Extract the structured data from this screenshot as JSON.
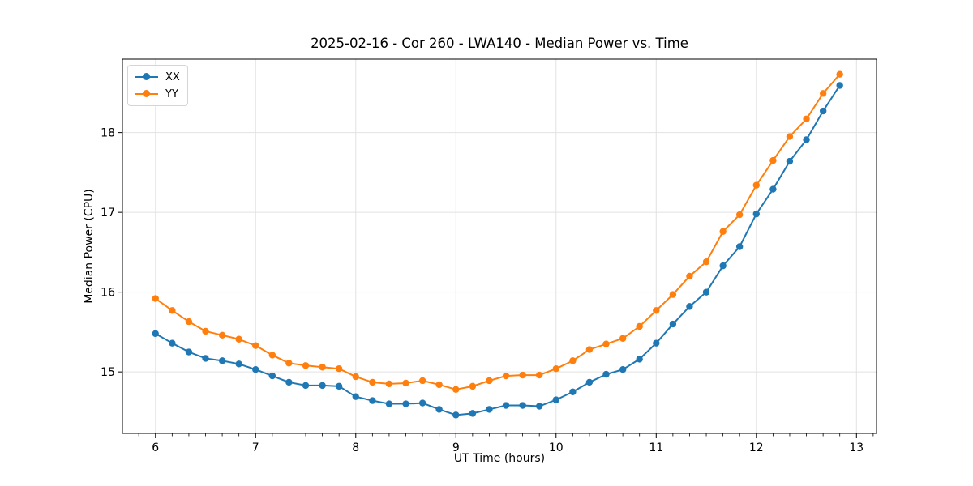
{
  "chart_data": {
    "type": "line",
    "title": "2025-02-16 - Cor 260 - LWA140 - Median Power vs. Time",
    "xlabel": "UT Time (hours)",
    "ylabel": "Median Power (CPU)",
    "xlim": [
      5.67,
      13.2
    ],
    "ylim": [
      14.23,
      18.92
    ],
    "xticks": [
      6,
      7,
      8,
      9,
      10,
      11,
      12,
      13
    ],
    "yticks": [
      15,
      16,
      17,
      18
    ],
    "x_minor_step": 0.1667,
    "grid": true,
    "grid_color": "#e2e2e2",
    "legend_position": "upper-left",
    "x": [
      6.0,
      6.167,
      6.333,
      6.5,
      6.667,
      6.833,
      7.0,
      7.167,
      7.333,
      7.5,
      7.667,
      7.833,
      8.0,
      8.167,
      8.333,
      8.5,
      8.667,
      8.833,
      9.0,
      9.167,
      9.333,
      9.5,
      9.667,
      9.833,
      10.0,
      10.167,
      10.333,
      10.5,
      10.667,
      10.833,
      11.0,
      11.167,
      11.333,
      11.5,
      11.667,
      11.833,
      12.0,
      12.167,
      12.333,
      12.5,
      12.667,
      12.833
    ],
    "series": [
      {
        "name": "XX",
        "color": "#1f77b4",
        "marker": "circle",
        "values": [
          15.48,
          15.36,
          15.25,
          15.17,
          15.14,
          15.1,
          15.03,
          14.95,
          14.87,
          14.83,
          14.83,
          14.82,
          14.69,
          14.64,
          14.6,
          14.6,
          14.61,
          14.53,
          14.46,
          14.48,
          14.53,
          14.58,
          14.58,
          14.57,
          14.65,
          14.75,
          14.87,
          14.97,
          15.03,
          15.16,
          15.36,
          15.6,
          15.82,
          16.0,
          16.33,
          16.57,
          16.98,
          17.29,
          17.64,
          17.91,
          18.27,
          18.59
        ]
      },
      {
        "name": "YY",
        "color": "#ff7f0e",
        "marker": "circle",
        "values": [
          15.92,
          15.77,
          15.63,
          15.51,
          15.46,
          15.41,
          15.33,
          15.21,
          15.11,
          15.08,
          15.06,
          15.04,
          14.94,
          14.87,
          14.85,
          14.86,
          14.89,
          14.84,
          14.78,
          14.82,
          14.89,
          14.95,
          14.96,
          14.96,
          15.04,
          15.14,
          15.28,
          15.35,
          15.42,
          15.57,
          15.77,
          15.97,
          16.2,
          16.38,
          16.76,
          16.97,
          17.34,
          17.65,
          17.95,
          18.17,
          18.49,
          18.73
        ]
      }
    ]
  }
}
